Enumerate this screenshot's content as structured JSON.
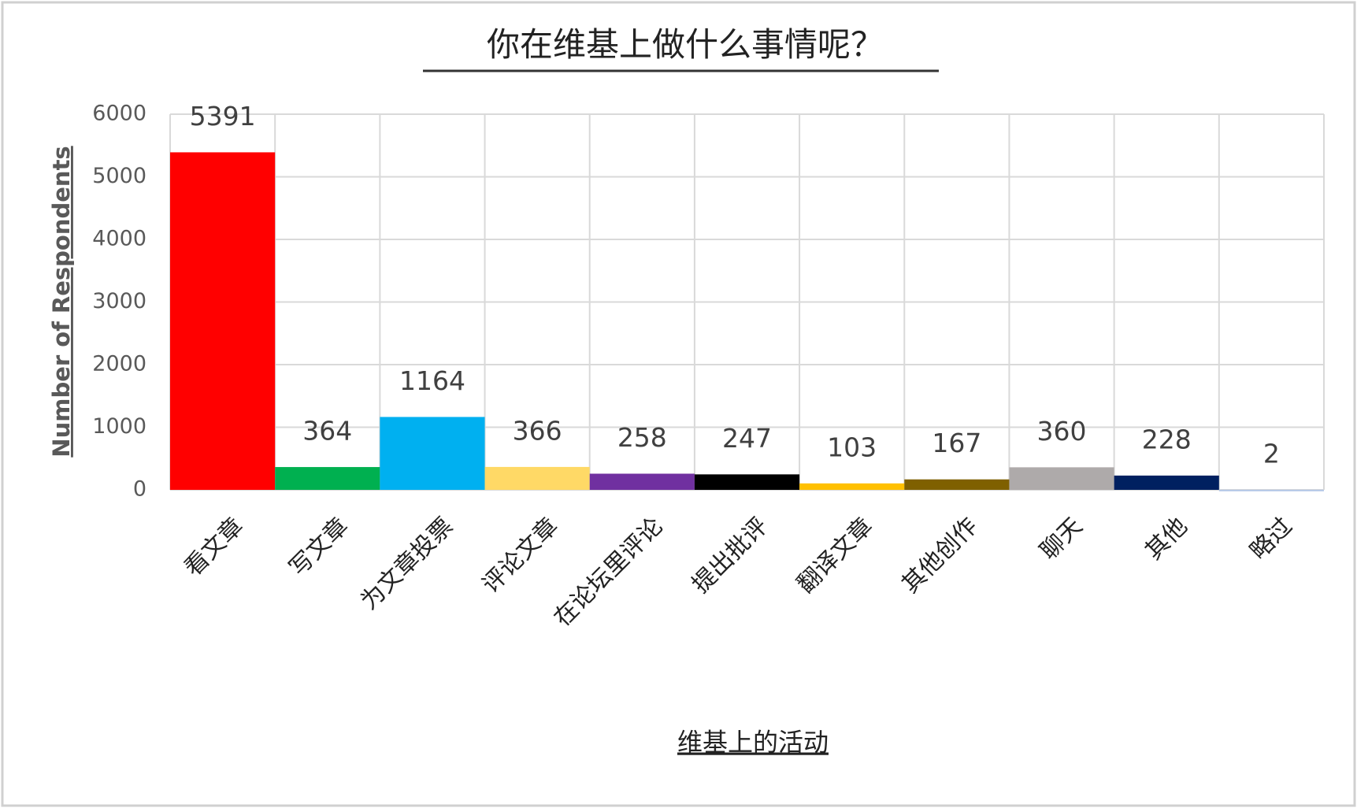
{
  "chart_data": {
    "type": "bar",
    "title": "你在维基上做什么事情呢？",
    "x_label": "维基上的活动",
    "y_label": "Number of Respondents",
    "categories": [
      "看文章",
      "写文章",
      "为文章投票",
      "评论文章",
      "在论坛里评论",
      "提出批评",
      "翻译文章",
      "其他创作",
      "聊天",
      "其他",
      "略过"
    ],
    "values": [
      5391,
      364,
      1164,
      366,
      258,
      247,
      103,
      167,
      360,
      228,
      2
    ],
    "colors": [
      "#ff0000",
      "#00b050",
      "#00b0f0",
      "#ffd966",
      "#7030a0",
      "#000000",
      "#ffc000",
      "#7f6000",
      "#aeaaaa",
      "#002060",
      "#b4c7e7"
    ],
    "ylim": [
      0,
      6000
    ],
    "yticks": [
      0,
      1000,
      2000,
      3000,
      4000,
      5000,
      6000
    ],
    "grid": true
  }
}
